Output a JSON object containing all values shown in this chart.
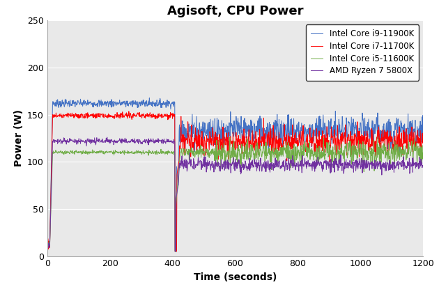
{
  "title": "Agisoft, CPU Power",
  "xlabel": "Time (seconds)",
  "ylabel": "Power (W)",
  "xlim": [
    0,
    1200
  ],
  "ylim": [
    0,
    250
  ],
  "xticks": [
    0,
    200,
    400,
    600,
    800,
    1000,
    1200
  ],
  "yticks": [
    0,
    50,
    100,
    150,
    200,
    250
  ],
  "series": [
    {
      "label": "Intel Core i9-11900K",
      "color": "#4472C4",
      "idle": 15,
      "ramp_start": 8,
      "ramp_end": 18,
      "phase1_level": 162,
      "phase1_end": 408,
      "peak": 190,
      "peak_t": 412,
      "drop_t": 418,
      "drop_val": 75,
      "phase2_level": 133,
      "phase2_start": 422,
      "noise1": 2.0,
      "noise2": 8.0
    },
    {
      "label": "Intel Core i7-11700K",
      "color": "#FF0000",
      "idle": 13,
      "ramp_start": 8,
      "ramp_end": 18,
      "phase1_level": 149,
      "phase1_end": 408,
      "peak": 172,
      "peak_t": 413,
      "drop_t": 420,
      "drop_val": 100,
      "phase2_level": 122,
      "phase2_start": 424,
      "noise1": 1.5,
      "noise2": 7.0
    },
    {
      "label": "Intel Core i5-11600K",
      "color": "#70AD47",
      "idle": 12,
      "ramp_start": 8,
      "ramp_end": 18,
      "phase1_level": 110,
      "phase1_end": 408,
      "peak": 110,
      "peak_t": 410,
      "drop_t": 425,
      "drop_val": 110,
      "phase2_level": 110,
      "phase2_start": 530,
      "noise1": 1.0,
      "noise2": 6.0
    },
    {
      "label": "AMD Ryzen 7 5800X",
      "color": "#7030A0",
      "idle": 12,
      "ramp_start": 8,
      "ramp_end": 18,
      "phase1_level": 122,
      "phase1_end": 408,
      "peak": 122,
      "peak_t": 410,
      "drop_t": 418,
      "drop_val": 75,
      "phase2_level": 97,
      "phase2_start": 422,
      "noise1": 1.5,
      "noise2": 3.5
    }
  ],
  "plot_bg_color": "#E9E9E9",
  "fig_bg_color": "#FFFFFF",
  "grid_color": "#FFFFFF",
  "legend_loc": "upper right",
  "title_fontsize": 13,
  "axis_label_fontsize": 10,
  "tick_fontsize": 9,
  "legend_fontsize": 8.5,
  "linewidth": 0.7
}
